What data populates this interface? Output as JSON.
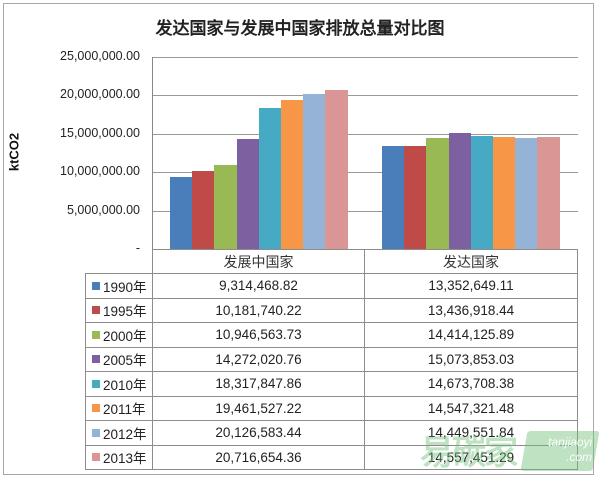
{
  "chart_data": {
    "type": "bar",
    "title": "发达国家与发展中国家排放总量对比图",
    "xlabel": "",
    "ylabel": "ktCO2",
    "ylim": [
      0,
      25000000
    ],
    "yticks": [
      "25,000,000.00",
      "20,000,000.00",
      "15,000,000.00",
      "10,000,000.00",
      "5,000,000.00",
      "-"
    ],
    "ytick_values": [
      25000000,
      20000000,
      15000000,
      10000000,
      5000000,
      0
    ],
    "grid": true,
    "legend_position": "data-table",
    "categories": [
      "发展中国家",
      "发达国家"
    ],
    "series": [
      {
        "name": "1990年",
        "color": "#4a7ebb",
        "values": [
          9314468.82,
          13352649.11
        ],
        "labels": [
          "9,314,468.82",
          "13,352,649.11"
        ]
      },
      {
        "name": "1995年",
        "color": "#be4b48",
        "values": [
          10181740.22,
          13436918.44
        ],
        "labels": [
          "10,181,740.22",
          "13,436,918.44"
        ]
      },
      {
        "name": "2000年",
        "color": "#98b954",
        "values": [
          10946563.73,
          14414125.89
        ],
        "labels": [
          "10,946,563.73",
          "14,414,125.89"
        ]
      },
      {
        "name": "2005年",
        "color": "#7d60a0",
        "values": [
          14272020.76,
          15073853.03
        ],
        "labels": [
          "14,272,020.76",
          "15,073,853.03"
        ]
      },
      {
        "name": "2010年",
        "color": "#46aac5",
        "values": [
          18317847.86,
          14673708.38
        ],
        "labels": [
          "18,317,847.86",
          "14,673,708.38"
        ]
      },
      {
        "name": "2011年",
        "color": "#f79646",
        "values": [
          19461527.22,
          14547321.48
        ],
        "labels": [
          "19,461,527.22",
          "14,547,321.48"
        ]
      },
      {
        "name": "2012年",
        "color": "#95b3d7",
        "values": [
          20126583.44,
          14449551.84
        ],
        "labels": [
          "20,126,583.44",
          "14,449,551.84"
        ]
      },
      {
        "name": "2013年",
        "color": "#d99694",
        "values": [
          20716654.36,
          14557451.29
        ],
        "labels": [
          "20,716,654.36",
          "14,557,451.29"
        ]
      }
    ]
  },
  "watermark": {
    "brand": "易碳家",
    "url_line1": "tanjiaoyi",
    "url_line2": ".com"
  }
}
